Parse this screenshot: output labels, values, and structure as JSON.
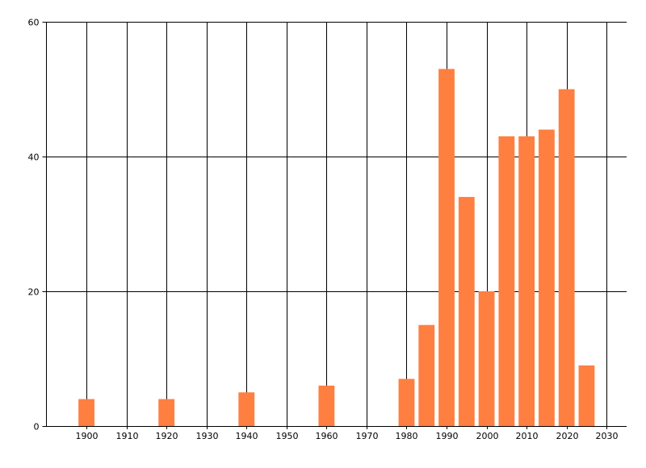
{
  "chart_data": {
    "type": "bar",
    "title": "",
    "xlabel": "",
    "ylabel": "",
    "x": [
      1900,
      1920,
      1940,
      1960,
      1980,
      1985,
      1990,
      1995,
      2000,
      2005,
      2010,
      2015,
      2020,
      2025
    ],
    "values": [
      4,
      4,
      5,
      6,
      7,
      15,
      53,
      34,
      20,
      43,
      43,
      44,
      50,
      9
    ],
    "bar_width_years": 4,
    "xlim": [
      1890,
      2035
    ],
    "ylim": [
      0,
      60
    ],
    "xticks": [
      1900,
      1910,
      1920,
      1930,
      1940,
      1950,
      1960,
      1970,
      1980,
      1990,
      2000,
      2010,
      2020,
      2030
    ],
    "yticks": [
      0,
      20,
      40,
      60
    ],
    "grid": true,
    "bar_color": "#FF7F40",
    "grid_color": "#000000"
  }
}
